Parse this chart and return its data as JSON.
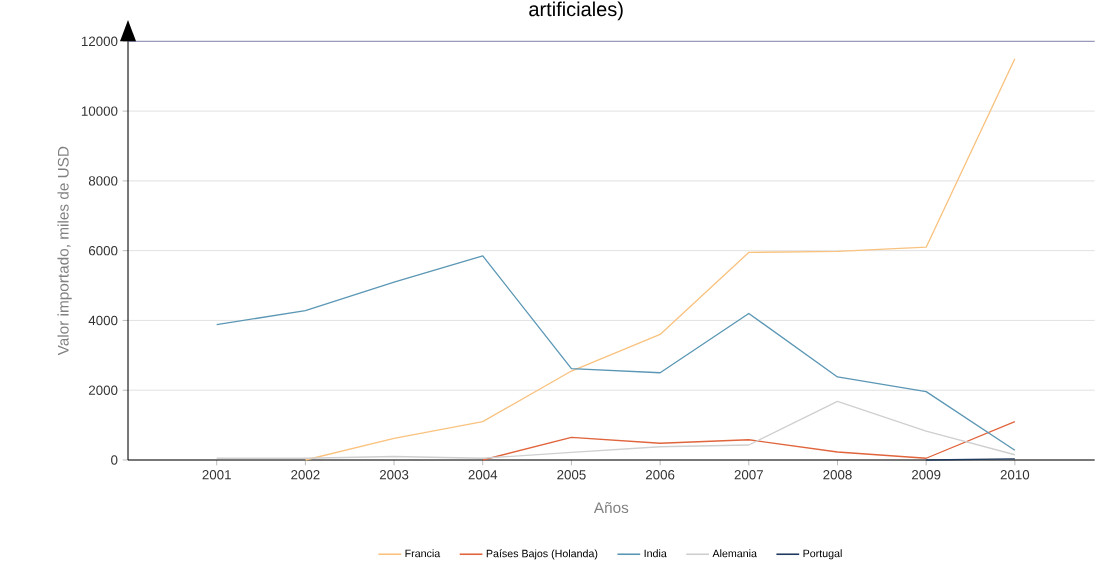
{
  "chart_data": {
    "type": "line",
    "title": "artificiales)",
    "xlabel": "Años",
    "ylabel": "Valor importado, miles de USD",
    "categories": [
      "2001",
      "2002",
      "2003",
      "2004",
      "2005",
      "2006",
      "2007",
      "2008",
      "2009",
      "2010"
    ],
    "series": [
      {
        "name": "Francia",
        "color": "#f9c27f",
        "values": [
          null,
          0,
          620,
          1100,
          2550,
          3600,
          5950,
          5980,
          6100,
          11500
        ]
      },
      {
        "name": "Países Bajos (Holanda)",
        "color": "#e0643c",
        "values": [
          null,
          null,
          null,
          0,
          650,
          480,
          580,
          230,
          50,
          1100
        ]
      },
      {
        "name": "India",
        "color": "#5b97b5",
        "values": [
          3880,
          4280,
          5100,
          5850,
          2620,
          2500,
          4200,
          2380,
          1960,
          280
        ]
      },
      {
        "name": "Alemania",
        "color": "#cfcfcf",
        "values": [
          50,
          50,
          100,
          50,
          220,
          380,
          430,
          1680,
          830,
          150
        ]
      },
      {
        "name": "Portugal",
        "color": "#1f3a5f",
        "values": [
          null,
          null,
          null,
          null,
          null,
          null,
          null,
          null,
          0,
          30
        ]
      }
    ],
    "ylim": [
      0,
      12000
    ],
    "yticks": [
      0,
      2000,
      4000,
      6000,
      8000,
      10000,
      12000
    ],
    "grid": "y",
    "legend": "bottom",
    "marker": "none",
    "line_style": "solid"
  }
}
